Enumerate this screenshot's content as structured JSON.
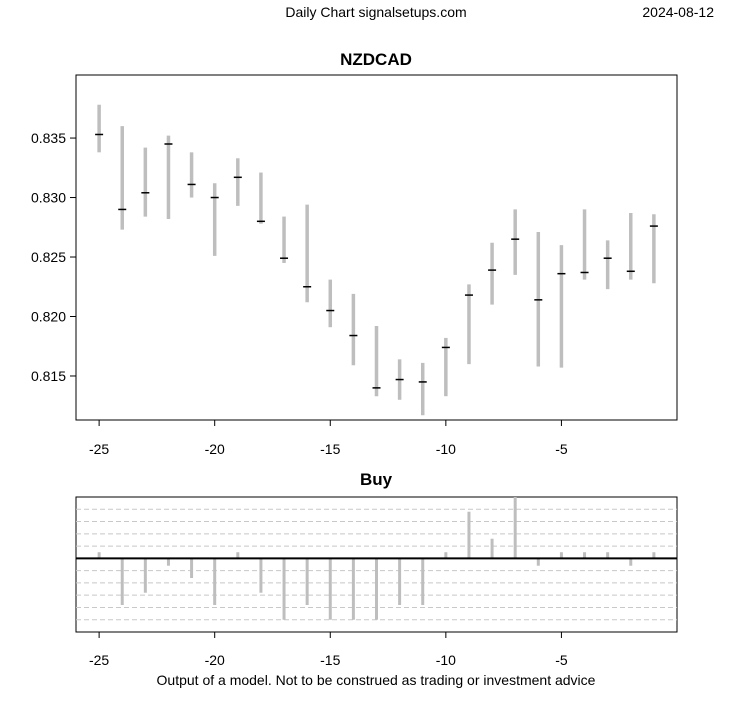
{
  "header": {
    "left_text": "Daily Chart signalsetups.com",
    "date": "2024-08-12"
  },
  "footer": {
    "disclaimer": "Output of a model. Not to be construed as trading or investment advice"
  },
  "colors": {
    "range_bar": "#bebebe",
    "close_tick": "#000000",
    "grid": "#c8c8c8",
    "zero_line": "#000000"
  },
  "chart_data": [
    {
      "type": "ohlc-range",
      "title": "NZDCAD",
      "xlim": [
        -26,
        0
      ],
      "ylim": [
        0.8113,
        0.8403
      ],
      "xticks": [
        -25,
        -20,
        -15,
        -10,
        -5
      ],
      "yticks": [
        0.815,
        0.82,
        0.825,
        0.83,
        0.835
      ],
      "ytick_labels": [
        "0.815",
        "0.820",
        "0.825",
        "0.830",
        "0.835"
      ],
      "grid": false,
      "x": [
        -25,
        -24,
        -23,
        -22,
        -21,
        -20,
        -19,
        -18,
        -17,
        -16,
        -15,
        -14,
        -13,
        -12,
        -11,
        -10,
        -9,
        -8,
        -7,
        -6,
        -5,
        -4,
        -3,
        -2,
        -1
      ],
      "low": [
        0.8338,
        0.8273,
        0.8284,
        0.8282,
        0.83,
        0.8251,
        0.8293,
        0.8278,
        0.8245,
        0.8212,
        0.8191,
        0.8159,
        0.8133,
        0.813,
        0.8117,
        0.8133,
        0.816,
        0.821,
        0.8235,
        0.8158,
        0.8157,
        0.8231,
        0.8223,
        0.8231,
        0.8228
      ],
      "high": [
        0.8378,
        0.836,
        0.8342,
        0.8352,
        0.8338,
        0.8312,
        0.8333,
        0.8321,
        0.8284,
        0.8294,
        0.8231,
        0.8219,
        0.8192,
        0.8164,
        0.8161,
        0.8182,
        0.8227,
        0.8262,
        0.829,
        0.8271,
        0.826,
        0.829,
        0.8264,
        0.8287,
        0.8286
      ],
      "close": [
        0.8353,
        0.829,
        0.8304,
        0.8345,
        0.8311,
        0.83,
        0.8317,
        0.828,
        0.8249,
        0.8225,
        0.8205,
        0.8184,
        0.814,
        0.8147,
        0.8145,
        0.8174,
        0.8218,
        0.8239,
        0.8265,
        0.8214,
        0.8236,
        0.8237,
        0.8249,
        0.8238,
        0.8276
      ]
    },
    {
      "type": "bar",
      "title": "Buy",
      "xlim": [
        -26,
        0
      ],
      "ylim": [
        -6,
        5
      ],
      "xticks": [
        -25,
        -20,
        -15,
        -10,
        -5
      ],
      "grid": true,
      "x": [
        -25,
        -24,
        -23,
        -22,
        -21,
        -20,
        -19,
        -18,
        -17,
        -16,
        -15,
        -14,
        -13,
        -12,
        -11,
        -10,
        -9,
        -8,
        -7,
        -6,
        -5,
        -4,
        -3,
        -2,
        -1
      ],
      "values": [
        0.5,
        -3.8,
        -2.8,
        -0.6,
        -1.6,
        -3.8,
        0.5,
        -2.8,
        -5.0,
        -3.8,
        -5.0,
        -5.0,
        -5.0,
        -3.8,
        -3.8,
        0.5,
        3.8,
        1.6,
        5.0,
        -0.6,
        0.5,
        0.5,
        0.5,
        -0.6,
        0.5
      ]
    }
  ]
}
